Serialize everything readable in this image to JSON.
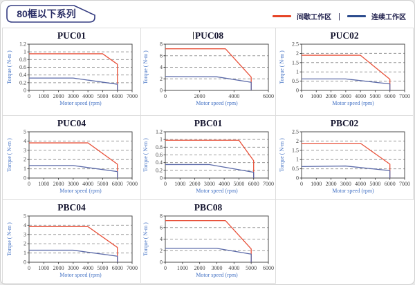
{
  "header": {
    "title": "80框以下系列"
  },
  "legend": {
    "intermittent_label": "间歇工作区",
    "separator": "|",
    "continuous_label": "连续工作区",
    "intermittent_color": "#e64426",
    "continuous_color": "#2b4b8d"
  },
  "chart_data": [
    {
      "type": "line",
      "title": "PUC01",
      "caret": false,
      "xlabel": "Motor speed (rpm)",
      "ylabel": "Torque ( N-m )",
      "xlim": [
        0,
        7000
      ],
      "ylim": [
        0,
        1.2
      ],
      "xticks": [
        "0",
        "1000",
        "2000",
        "3000",
        "4000",
        "5000",
        "6000",
        "7000"
      ],
      "yticks": [
        "0",
        "0.2",
        "0.4",
        "0.6",
        "0.8",
        "1",
        "1.2"
      ],
      "series": [
        {
          "name": "间歇工作区",
          "color": "#e8513a",
          "points": [
            [
              0,
              0.95
            ],
            [
              5000,
              0.95
            ],
            [
              6000,
              0.68
            ],
            [
              6000,
              0
            ]
          ]
        },
        {
          "name": "连续工作区",
          "color": "#5a69a8",
          "points": [
            [
              0,
              0.32
            ],
            [
              3000,
              0.32
            ],
            [
              6000,
              0.16
            ],
            [
              6000,
              0
            ]
          ]
        }
      ]
    },
    {
      "type": "line",
      "title": "PUC08",
      "caret": true,
      "xlabel": "Motor speed (rpm)",
      "ylabel": "Torque ( N-m )",
      "xlim": [
        0,
        6000
      ],
      "ylim": [
        0,
        8
      ],
      "xticks": [
        "0",
        "2000",
        "4000",
        "6000"
      ],
      "yticks": [
        "0",
        "2",
        "4",
        "6",
        "8"
      ],
      "series": [
        {
          "name": "间歇工作区",
          "color": "#e8513a",
          "points": [
            [
              0,
              7.2
            ],
            [
              3500,
              7.2
            ],
            [
              5000,
              2.3
            ],
            [
              5000,
              0
            ]
          ]
        },
        {
          "name": "连续工作区",
          "color": "#5a69a8",
          "points": [
            [
              0,
              2.4
            ],
            [
              3000,
              2.35
            ],
            [
              5000,
              1.4
            ],
            [
              5000,
              0
            ]
          ]
        }
      ]
    },
    {
      "type": "line",
      "title": "PUC02",
      "caret": false,
      "xlabel": "Motor speed (rpm)",
      "ylabel": "Torque ( N-m )",
      "xlim": [
        0,
        7000
      ],
      "ylim": [
        0,
        2.5
      ],
      "xticks": [
        "0",
        "1000",
        "2000",
        "3000",
        "4000",
        "5000",
        "6000",
        "7000"
      ],
      "yticks": [
        "0",
        "0.5",
        "1",
        "1.5",
        "2",
        "2.5"
      ],
      "series": [
        {
          "name": "间歇工作区",
          "color": "#e8513a",
          "points": [
            [
              0,
              1.9
            ],
            [
              4000,
              1.9
            ],
            [
              6000,
              0.6
            ],
            [
              6000,
              0
            ]
          ]
        },
        {
          "name": "连续工作区",
          "color": "#5a69a8",
          "points": [
            [
              0,
              0.62
            ],
            [
              3000,
              0.62
            ],
            [
              6000,
              0.35
            ],
            [
              6000,
              0
            ]
          ]
        }
      ]
    },
    {
      "type": "line",
      "title": "PUC04",
      "caret": false,
      "xlabel": "Motor speed (rpm)",
      "ylabel": "Torque ( N-m )",
      "xlim": [
        0,
        7000
      ],
      "ylim": [
        0,
        5
      ],
      "xticks": [
        "0",
        "1000",
        "2000",
        "3000",
        "4000",
        "5000",
        "6000",
        "7000"
      ],
      "yticks": [
        "0",
        "1",
        "2",
        "3",
        "4",
        "5"
      ],
      "series": [
        {
          "name": "间歇工作区",
          "color": "#e8513a",
          "points": [
            [
              0,
              3.8
            ],
            [
              4000,
              3.8
            ],
            [
              6000,
              1.5
            ],
            [
              6000,
              0
            ]
          ]
        },
        {
          "name": "连续工作区",
          "color": "#5a69a8",
          "points": [
            [
              0,
              1.35
            ],
            [
              3000,
              1.35
            ],
            [
              6000,
              0.7
            ],
            [
              6000,
              0
            ]
          ]
        }
      ]
    },
    {
      "type": "line",
      "title": "PBC01",
      "caret": false,
      "xlabel": "Motor speed (rpm)",
      "ylabel": "Torque ( N-m )",
      "xlim": [
        0,
        7000
      ],
      "ylim": [
        0,
        1.2
      ],
      "xticks": [
        "0",
        "1000",
        "2000",
        "3000",
        "4000",
        "5000",
        "6000",
        "7000"
      ],
      "yticks": [
        "0",
        "0.2",
        "0.4",
        "0.6",
        "0.8",
        "1",
        "1.2"
      ],
      "series": [
        {
          "name": "间歇工作区",
          "color": "#e8513a",
          "points": [
            [
              0,
              0.98
            ],
            [
              5000,
              0.98
            ],
            [
              6000,
              0.45
            ],
            [
              6000,
              0
            ]
          ]
        },
        {
          "name": "连续工作区",
          "color": "#5a69a8",
          "points": [
            [
              0,
              0.35
            ],
            [
              3000,
              0.35
            ],
            [
              6000,
              0.15
            ],
            [
              6000,
              0
            ]
          ]
        }
      ]
    },
    {
      "type": "line",
      "title": "PBC02",
      "caret": false,
      "xlabel": "Motor speed (rpm)",
      "ylabel": "Torque ( N-m )",
      "xlim": [
        0,
        7000
      ],
      "ylim": [
        0,
        2.5
      ],
      "xticks": [
        "0",
        "1000",
        "2000",
        "3000",
        "4000",
        "5000",
        "6000",
        "7000"
      ],
      "yticks": [
        "0",
        "0.5",
        "1",
        "1.5",
        "2",
        "2.5"
      ],
      "series": [
        {
          "name": "间歇工作区",
          "color": "#e8513a",
          "points": [
            [
              0,
              1.88
            ],
            [
              4000,
              1.88
            ],
            [
              6000,
              0.75
            ],
            [
              6000,
              0
            ]
          ]
        },
        {
          "name": "连续工作区",
          "color": "#5a69a8",
          "points": [
            [
              0,
              0.62
            ],
            [
              3000,
              0.65
            ],
            [
              6000,
              0.4
            ],
            [
              6000,
              0
            ]
          ]
        }
      ]
    },
    {
      "type": "line",
      "title": "PBC04",
      "caret": false,
      "xlabel": "Motor speed (rpm)",
      "ylabel": "Torque ( N-m )",
      "xlim": [
        0,
        7000
      ],
      "ylim": [
        0,
        5
      ],
      "xticks": [
        "0",
        "1000",
        "2000",
        "3000",
        "4000",
        "5000",
        "6000",
        "7000"
      ],
      "yticks": [
        "0",
        "1",
        "2",
        "3",
        "4",
        "5"
      ],
      "series": [
        {
          "name": "间歇工作区",
          "color": "#e8513a",
          "points": [
            [
              0,
              3.85
            ],
            [
              4000,
              3.85
            ],
            [
              6000,
              1.6
            ],
            [
              6000,
              0
            ]
          ]
        },
        {
          "name": "连续工作区",
          "color": "#5a69a8",
          "points": [
            [
              0,
              1.3
            ],
            [
              3000,
              1.3
            ],
            [
              6000,
              0.65
            ],
            [
              6000,
              0
            ]
          ]
        }
      ]
    },
    {
      "type": "line",
      "title": "PBC08",
      "caret": false,
      "xlabel": "Motor speed (rpm)",
      "ylabel": "Torque ( N-m )",
      "xlim": [
        0,
        6000
      ],
      "ylim": [
        0,
        8
      ],
      "xticks": [
        "0",
        "1000",
        "2000",
        "3000",
        "4000",
        "5000",
        "6000"
      ],
      "yticks": [
        "0",
        "2",
        "4",
        "6",
        "8"
      ],
      "series": [
        {
          "name": "间歇工作区",
          "color": "#e8513a",
          "points": [
            [
              0,
              7.2
            ],
            [
              3500,
              7.2
            ],
            [
              5000,
              2.3
            ],
            [
              5000,
              0
            ]
          ]
        },
        {
          "name": "连续工作区",
          "color": "#5a69a8",
          "points": [
            [
              0,
              2.4
            ],
            [
              3000,
              2.4
            ],
            [
              5000,
              1.4
            ],
            [
              5000,
              0
            ]
          ]
        }
      ]
    }
  ]
}
